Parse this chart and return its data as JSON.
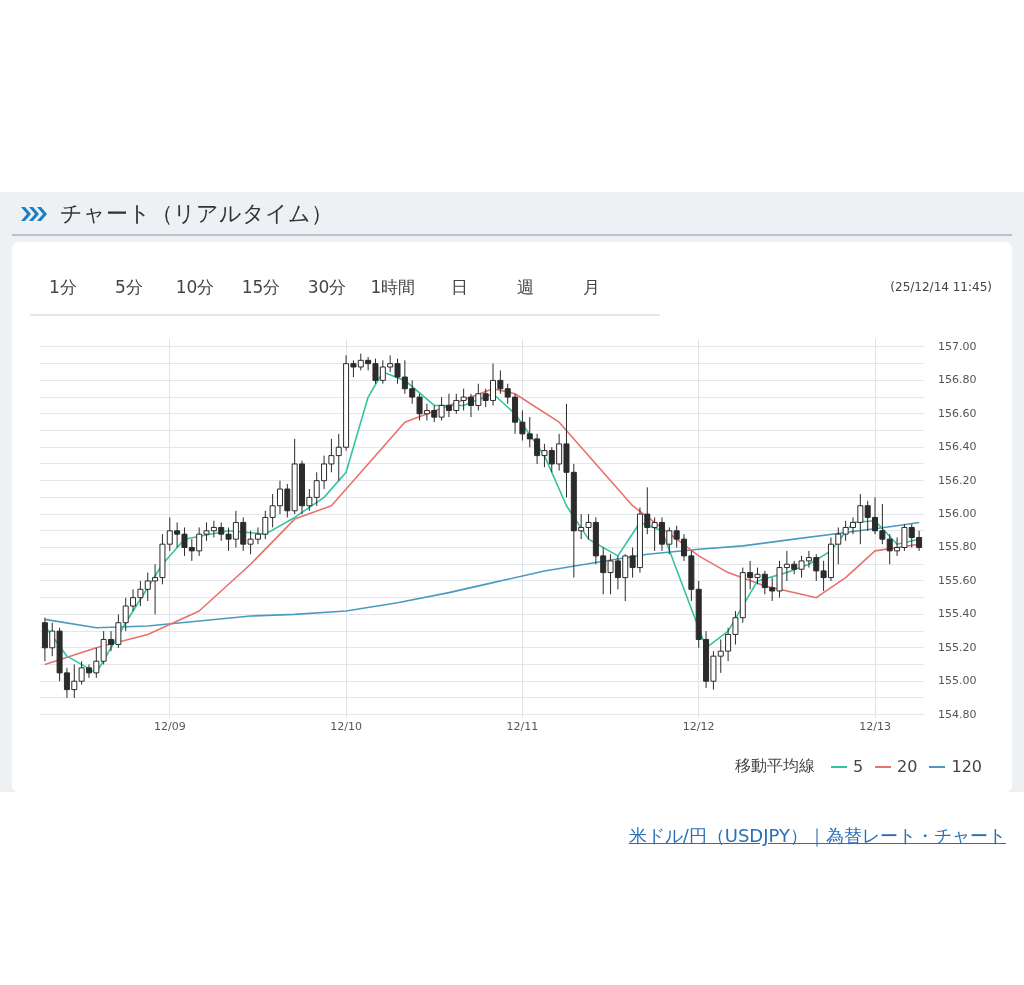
{
  "chart_data": {
    "type": "candlestick",
    "title": "チャート（リアルタイム）",
    "subtitle": "(25/12/14 11:45)",
    "annotations": [
      "1分",
      "5分",
      "10分",
      "15分",
      "30分",
      "1時間",
      "日",
      "週",
      "月",
      "米ドル/円（USDJPY）｜為替レート・チャート"
    ],
    "legend_title": "移動平均線",
    "legend": "bottom right",
    "grid": true,
    "x": [
      "--12-08T07:00",
      "--12-08T08:00",
      "--12-08T09:00",
      "--12-08T10:00",
      "--12-08T11:00",
      "--12-08T12:00",
      "--12-08T13:00",
      "--12-08T14:00",
      "--12-08T15:00",
      "--12-08T16:00",
      "--12-08T17:00",
      "--12-08T18:00",
      "--12-08T19:00",
      "--12-08T20:00",
      "--12-08T21:00",
      "--12-08T22:00",
      "--12-08T23:00",
      "--12-09T00:00",
      "--12-09T01:00",
      "--12-09T02:00",
      "--12-09T03:00",
      "--12-09T04:00",
      "--12-09T05:00",
      "--12-09T06:00",
      "--12-09T07:00",
      "--12-09T08:00",
      "--12-09T09:00",
      "--12-09T10:00",
      "--12-09T11:00",
      "--12-09T12:00",
      "--12-09T13:00",
      "--12-09T14:00",
      "--12-09T15:00",
      "--12-09T16:00",
      "--12-09T17:00",
      "--12-09T18:00",
      "--12-09T19:00",
      "--12-09T20:00",
      "--12-09T21:00",
      "--12-09T22:00",
      "--12-09T23:00",
      "--12-10T00:00",
      "--12-10T01:00",
      "--12-10T02:00",
      "--12-10T03:00",
      "--12-10T04:00",
      "--12-10T05:00",
      "--12-10T06:00",
      "--12-10T07:00",
      "--12-10T08:00",
      "--12-10T09:00",
      "--12-10T10:00",
      "--12-10T11:00",
      "--12-10T12:00",
      "--12-10T13:00",
      "--12-10T14:00",
      "--12-10T15:00",
      "--12-10T16:00",
      "--12-10T17:00",
      "--12-10T18:00",
      "--12-10T19:00",
      "--12-10T20:00",
      "--12-10T21:00",
      "--12-10T22:00",
      "--12-10T23:00",
      "--12-11T00:00",
      "--12-11T01:00",
      "--12-11T02:00",
      "--12-11T03:00",
      "--12-11T04:00",
      "--12-11T05:00",
      "--12-11T06:00",
      "--12-11T07:00",
      "--12-11T08:00",
      "--12-11T09:00",
      "--12-11T10:00",
      "--12-11T11:00",
      "--12-11T12:00",
      "--12-11T13:00",
      "--12-11T14:00",
      "--12-11T15:00",
      "--12-11T16:00",
      "--12-11T17:00",
      "--12-11T18:00",
      "--12-11T19:00",
      "--12-11T20:00",
      "--12-11T21:00",
      "--12-11T22:00",
      "--12-11T23:00",
      "--12-12T00:00",
      "--12-12T01:00",
      "--12-12T02:00",
      "--12-12T03:00",
      "--12-12T04:00",
      "--12-12T05:00",
      "--12-12T06:00",
      "--12-12T07:00",
      "--12-12T08:00",
      "--12-12T09:00",
      "--12-12T10:00",
      "--12-12T11:00",
      "--12-12T12:00",
      "--12-12T13:00",
      "--12-12T14:00",
      "--12-12T15:00",
      "--12-12T16:00",
      "--12-12T17:00",
      "--12-12T18:00",
      "--12-12T19:00",
      "--12-12T20:00",
      "--12-12T21:00",
      "--12-12T22:00",
      "--12-12T23:00",
      "--12-13T00:00",
      "--12-13T01:00",
      "--12-13T02:00",
      "--12-13T03:00",
      "--12-13T04:00",
      "--12-13T05:00",
      "--12-13T06:00"
    ],
    "ohlc": [
      [
        155.35,
        155.38,
        155.12,
        155.2
      ],
      [
        155.2,
        155.35,
        155.15,
        155.3
      ],
      [
        155.3,
        155.32,
        155.0,
        155.05
      ],
      [
        155.05,
        155.08,
        154.9,
        154.95
      ],
      [
        154.95,
        155.1,
        154.9,
        155.0
      ],
      [
        155.0,
        155.12,
        154.98,
        155.08
      ],
      [
        155.08,
        155.1,
        155.02,
        155.05
      ],
      [
        155.05,
        155.2,
        155.02,
        155.12
      ],
      [
        155.12,
        155.3,
        155.1,
        155.25
      ],
      [
        155.25,
        155.3,
        155.18,
        155.22
      ],
      [
        155.22,
        155.4,
        155.2,
        155.35
      ],
      [
        155.35,
        155.5,
        155.3,
        155.45
      ],
      [
        155.45,
        155.55,
        155.42,
        155.5
      ],
      [
        155.5,
        155.6,
        155.45,
        155.55
      ],
      [
        155.55,
        155.65,
        155.48,
        155.6
      ],
      [
        155.6,
        155.7,
        155.4,
        155.62
      ],
      [
        155.62,
        155.88,
        155.58,
        155.82
      ],
      [
        155.82,
        155.98,
        155.78,
        155.9
      ],
      [
        155.9,
        155.95,
        155.8,
        155.88
      ],
      [
        155.88,
        155.92,
        155.75,
        155.8
      ],
      [
        155.8,
        155.85,
        155.72,
        155.78
      ],
      [
        155.78,
        155.92,
        155.75,
        155.88
      ],
      [
        155.88,
        155.95,
        155.84,
        155.9
      ],
      [
        155.9,
        155.96,
        155.86,
        155.92
      ],
      [
        155.92,
        155.95,
        155.84,
        155.88
      ],
      [
        155.88,
        155.92,
        155.78,
        155.85
      ],
      [
        155.85,
        156.02,
        155.8,
        155.95
      ],
      [
        155.95,
        155.98,
        155.78,
        155.82
      ],
      [
        155.82,
        155.9,
        155.76,
        155.85
      ],
      [
        155.85,
        155.92,
        155.82,
        155.88
      ],
      [
        155.88,
        156.02,
        155.85,
        155.98
      ],
      [
        155.98,
        156.12,
        155.92,
        156.05
      ],
      [
        156.05,
        156.2,
        156.0,
        156.15
      ],
      [
        156.15,
        156.18,
        155.98,
        156.02
      ],
      [
        156.02,
        156.45,
        156.0,
        156.3
      ],
      [
        156.3,
        156.32,
        156.0,
        156.05
      ],
      [
        156.05,
        156.15,
        156.02,
        156.1
      ],
      [
        156.1,
        156.25,
        156.05,
        156.2
      ],
      [
        156.2,
        156.35,
        156.15,
        156.3
      ],
      [
        156.3,
        156.45,
        156.25,
        156.35
      ],
      [
        156.35,
        156.48,
        156.2,
        156.4
      ],
      [
        156.4,
        156.95,
        156.38,
        156.9
      ],
      [
        156.9,
        156.92,
        156.82,
        156.88
      ],
      [
        156.88,
        156.96,
        156.86,
        156.92
      ],
      [
        156.92,
        156.94,
        156.86,
        156.9
      ],
      [
        156.9,
        156.93,
        156.78,
        156.8
      ],
      [
        156.8,
        156.92,
        156.78,
        156.88
      ],
      [
        156.88,
        156.95,
        156.85,
        156.9
      ],
      [
        156.9,
        156.93,
        156.78,
        156.82
      ],
      [
        156.82,
        156.92,
        156.72,
        156.75
      ],
      [
        156.75,
        156.8,
        156.66,
        156.7
      ],
      [
        156.7,
        156.72,
        156.56,
        156.6
      ],
      [
        156.6,
        156.66,
        156.56,
        156.62
      ],
      [
        156.62,
        156.65,
        156.55,
        156.58
      ],
      [
        156.58,
        156.7,
        156.56,
        156.65
      ],
      [
        156.65,
        156.72,
        156.58,
        156.62
      ],
      [
        156.62,
        156.72,
        156.6,
        156.68
      ],
      [
        156.68,
        156.75,
        156.62,
        156.7
      ],
      [
        156.7,
        156.72,
        156.58,
        156.65
      ],
      [
        156.65,
        156.78,
        156.62,
        156.72
      ],
      [
        156.72,
        156.75,
        156.64,
        156.68
      ],
      [
        156.68,
        156.9,
        156.65,
        156.8
      ],
      [
        156.8,
        156.86,
        156.72,
        156.75
      ],
      [
        156.75,
        156.78,
        156.66,
        156.7
      ],
      [
        156.7,
        156.72,
        156.48,
        156.55
      ],
      [
        156.55,
        156.62,
        156.44,
        156.48
      ],
      [
        156.48,
        156.58,
        156.4,
        156.45
      ],
      [
        156.45,
        156.48,
        156.3,
        156.35
      ],
      [
        156.35,
        156.42,
        156.28,
        156.38
      ],
      [
        156.38,
        156.4,
        156.25,
        156.3
      ],
      [
        156.3,
        156.48,
        156.26,
        156.42
      ],
      [
        156.42,
        156.66,
        156.1,
        156.25
      ],
      [
        156.25,
        156.3,
        155.62,
        155.9
      ],
      [
        155.9,
        156.0,
        155.85,
        155.92
      ],
      [
        155.92,
        156.0,
        155.85,
        155.95
      ],
      [
        155.95,
        155.98,
        155.7,
        155.75
      ],
      [
        155.75,
        155.8,
        155.52,
        155.65
      ],
      [
        155.65,
        155.76,
        155.52,
        155.72
      ],
      [
        155.72,
        155.75,
        155.55,
        155.62
      ],
      [
        155.62,
        155.76,
        155.48,
        155.75
      ],
      [
        155.75,
        155.8,
        155.62,
        155.68
      ],
      [
        155.68,
        156.04,
        155.65,
        156.0
      ],
      [
        156.0,
        156.16,
        155.88,
        155.92
      ],
      [
        155.92,
        155.98,
        155.78,
        155.95
      ],
      [
        155.95,
        155.98,
        155.78,
        155.82
      ],
      [
        155.82,
        155.92,
        155.76,
        155.9
      ],
      [
        155.9,
        155.93,
        155.8,
        155.85
      ],
      [
        155.85,
        155.88,
        155.72,
        155.75
      ],
      [
        155.75,
        155.78,
        155.48,
        155.55
      ],
      [
        155.55,
        155.6,
        155.2,
        155.25
      ],
      [
        155.25,
        155.3,
        154.96,
        155.0
      ],
      [
        155.0,
        155.18,
        154.95,
        155.15
      ],
      [
        155.15,
        155.25,
        155.05,
        155.18
      ],
      [
        155.18,
        155.32,
        155.12,
        155.28
      ],
      [
        155.28,
        155.42,
        155.22,
        155.38
      ],
      [
        155.38,
        155.68,
        155.35,
        155.65
      ],
      [
        155.65,
        155.72,
        155.55,
        155.62
      ],
      [
        155.62,
        155.68,
        155.58,
        155.64
      ],
      [
        155.64,
        155.66,
        155.52,
        155.56
      ],
      [
        155.56,
        155.62,
        155.48,
        155.54
      ],
      [
        155.54,
        155.72,
        155.5,
        155.68
      ],
      [
        155.68,
        155.78,
        155.6,
        155.7
      ],
      [
        155.7,
        155.72,
        155.64,
        155.67
      ],
      [
        155.67,
        155.75,
        155.62,
        155.72
      ],
      [
        155.72,
        155.78,
        155.68,
        155.74
      ],
      [
        155.74,
        155.76,
        155.6,
        155.66
      ],
      [
        155.66,
        155.72,
        155.54,
        155.62
      ],
      [
        155.62,
        155.86,
        155.6,
        155.82
      ],
      [
        155.82,
        155.92,
        155.7,
        155.88
      ],
      [
        155.88,
        155.96,
        155.84,
        155.92
      ],
      [
        155.92,
        155.98,
        155.88,
        155.95
      ],
      [
        155.95,
        156.12,
        155.82,
        156.05
      ],
      [
        156.05,
        156.08,
        155.9,
        155.98
      ],
      [
        155.98,
        156.1,
        155.88,
        155.9
      ],
      [
        155.9,
        156.06,
        155.82,
        155.85
      ],
      [
        155.85,
        155.88,
        155.7,
        155.78
      ],
      [
        155.78,
        155.86,
        155.75,
        155.8
      ],
      [
        155.8,
        155.94,
        155.78,
        155.92
      ],
      [
        155.92,
        155.94,
        155.8,
        155.86
      ],
      [
        155.86,
        155.9,
        155.78,
        155.8
      ]
    ],
    "series": [
      {
        "name": "5",
        "type": "line",
        "color": "#33c3a1",
        "x": [
          "--12-08T07:00",
          "--12-08T10:00",
          "--12-08T14:00",
          "--12-08T18:00",
          "--12-08T23:00",
          "--12-09T02:00",
          "--12-09T08:00",
          "--12-09T13:00",
          "--12-09T17:00",
          "--12-09T21:00",
          "--12-10T00:00",
          "--12-10T03:00",
          "--12-10T05:00",
          "--12-10T08:00",
          "--12-10T12:00",
          "--12-10T16:00",
          "--12-10T20:00",
          "--12-10T23:00",
          "--12-11T03:00",
          "--12-11T06:00",
          "--12-11T09:00",
          "--12-11T13:00",
          "--12-11T16:00",
          "--12-11T19:00",
          "--12-11T22:00",
          "--12-12T01:00",
          "--12-12T04:00",
          "--12-12T08:00",
          "--12-12T12:00",
          "--12-12T15:00",
          "--12-12T18:00",
          "--12-12T21:00",
          "--12-13T00:00",
          "--12-13T03:00",
          "--12-13T06:00"
        ],
        "values": [
          155.33,
          155.15,
          155.05,
          155.35,
          155.7,
          155.85,
          155.9,
          155.88,
          155.98,
          156.1,
          156.25,
          156.7,
          156.85,
          156.8,
          156.65,
          156.65,
          156.72,
          156.6,
          156.35,
          156.05,
          155.85,
          155.75,
          155.95,
          155.9,
          155.55,
          155.2,
          155.3,
          155.6,
          155.65,
          155.7,
          155.78,
          155.95,
          155.96,
          155.82,
          155.85
        ]
      },
      {
        "name": "20",
        "type": "line",
        "color": "#e8716c",
        "x": [
          "--12-08T07:00",
          "--12-08T14:00",
          "--12-08T21:00",
          "--12-09T04:00",
          "--12-09T11:00",
          "--12-09T17:00",
          "--12-09T22:00",
          "--12-10T03:00",
          "--12-10T08:00",
          "--12-10T14:00",
          "--12-10T20:00",
          "--12-10T23:00",
          "--12-11T05:00",
          "--12-11T10:00",
          "--12-11T15:00",
          "--12-11T21:00",
          "--12-12T00:00",
          "--12-12T04:00",
          "--12-12T09:00",
          "--12-12T14:00",
          "--12-12T16:00",
          "--12-12T20:00",
          "--12-13T00:00",
          "--12-13T06:00"
        ],
        "values": [
          155.1,
          155.2,
          155.28,
          155.42,
          155.7,
          155.97,
          156.05,
          156.3,
          156.55,
          156.65,
          156.75,
          156.72,
          156.55,
          156.3,
          156.05,
          155.85,
          155.75,
          155.65,
          155.57,
          155.52,
          155.5,
          155.62,
          155.78,
          155.82
        ]
      },
      {
        "name": "120",
        "type": "line",
        "color": "#4a9bbf",
        "x": [
          "--12-08T07:00",
          "--12-08T14:00",
          "--12-08T21:00",
          "--12-09T04:00",
          "--12-09T11:00",
          "--12-09T17:00",
          "--12-10T00:00",
          "--12-10T07:00",
          "--12-10T14:00",
          "--12-10T20:00",
          "--12-11T03:00",
          "--12-11T10:00",
          "--12-11T17:00",
          "--12-12T00:00",
          "--12-12T06:00",
          "--12-12T13:00",
          "--12-12T20:00",
          "--12-13T03:00",
          "--12-13T06:00"
        ],
        "values": [
          155.37,
          155.32,
          155.33,
          155.36,
          155.39,
          155.4,
          155.42,
          155.47,
          155.53,
          155.59,
          155.66,
          155.71,
          155.76,
          155.79,
          155.81,
          155.85,
          155.89,
          155.93,
          155.95
        ]
      }
    ],
    "xlim": [
      "--12-08T06:20",
      "--12-13T06:40"
    ],
    "xticks": [
      {
        "value": "--12-09T00:00",
        "label": "12/09"
      },
      {
        "value": "--12-10T00:00",
        "label": "12/10"
      },
      {
        "value": "--12-11T00:00",
        "label": "12/11"
      },
      {
        "value": "--12-12T00:00",
        "label": "12/12"
      },
      {
        "value": "--12-13T00:00",
        "label": "12/13"
      }
    ],
    "ylim": [
      154.78,
      157.05
    ],
    "yticks": [
      {
        "value": 154.8,
        "label": "154.80"
      },
      {
        "value": 154.9,
        "label": null
      },
      {
        "value": 155,
        "label": "155.00"
      },
      {
        "value": 155.1,
        "label": null
      },
      {
        "value": 155.2,
        "label": "155.20"
      },
      {
        "value": 155.3,
        "label": null
      },
      {
        "value": 155.4,
        "label": "155.40"
      },
      {
        "value": 155.5,
        "label": null
      },
      {
        "value": 155.6,
        "label": "155.60"
      },
      {
        "value": 155.7,
        "label": null
      },
      {
        "value": 155.8,
        "label": "155.80"
      },
      {
        "value": 155.9,
        "label": null
      },
      {
        "value": 156,
        "label": "156.00"
      },
      {
        "value": 156.1,
        "label": null
      },
      {
        "value": 156.2,
        "label": "156.20"
      },
      {
        "value": 156.3,
        "label": null
      },
      {
        "value": 156.4,
        "label": "156.40"
      },
      {
        "value": 156.5,
        "label": null
      },
      {
        "value": 156.6,
        "label": "156.60"
      },
      {
        "value": 156.7,
        "label": null
      },
      {
        "value": 156.8,
        "label": "156.80"
      },
      {
        "value": 156.9,
        "label": null
      },
      {
        "value": 157,
        "label": "157.00"
      }
    ]
  }
}
